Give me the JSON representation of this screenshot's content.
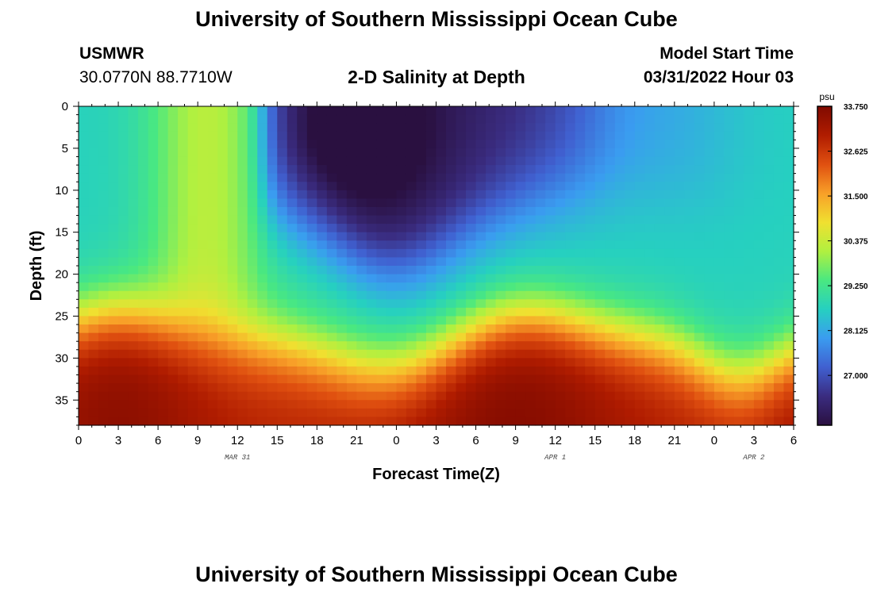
{
  "header": {
    "title": "University of Southern Mississippi Ocean Cube",
    "station": "USMWR",
    "coords": "30.0770N  88.7710W",
    "subtitle": "2-D Salinity at Depth",
    "model_label": "Model Start Time",
    "model_time": "03/31/2022 Hour 03"
  },
  "footer": {
    "title": "University of Southern Mississippi Ocean Cube"
  },
  "chart_data": {
    "type": "heatmap",
    "xlabel": "Forecast Time(Z)",
    "ylabel": "Depth (ft)",
    "x_ticks": [
      "0",
      "3",
      "6",
      "9",
      "12",
      "15",
      "18",
      "21",
      "0",
      "3",
      "6",
      "9",
      "12",
      "15",
      "18",
      "21",
      "0",
      "3",
      "6"
    ],
    "date_labels": [
      {
        "label": "MAR 31",
        "at_hour": 12
      },
      {
        "label": "APR 1",
        "at_hour": 36
      },
      {
        "label": "APR 2",
        "at_hour": 51
      }
    ],
    "x_range_hours": [
      0,
      54
    ],
    "y_ticks": [
      0,
      5,
      10,
      15,
      20,
      25,
      30,
      35
    ],
    "ylim": [
      0,
      38
    ],
    "y_inverted": true,
    "colorbar": {
      "unit": "psu",
      "min": 25.75,
      "max": 33.75,
      "ticks": [
        "33.750",
        "32.625",
        "31.500",
        "30.375",
        "29.250",
        "28.125",
        "27.000"
      ],
      "colors": [
        "#2a1040",
        "#3a2c80",
        "#4060d0",
        "#3a9cf0",
        "#26d0c0",
        "#4ae880",
        "#b0f040",
        "#f0e030",
        "#f8a028",
        "#e05010",
        "#b01c00",
        "#800a00"
      ]
    },
    "field_description_points": [
      {
        "hour": 0,
        "depth": 0,
        "psu": 28.7
      },
      {
        "hour": 9,
        "depth": 0,
        "psu": 30.0
      },
      {
        "hour": 14,
        "depth": 0,
        "psu": 27.2
      },
      {
        "hour": 21,
        "depth": 3,
        "psu": 25.8
      },
      {
        "hour": 30,
        "depth": 5,
        "psu": 26.3
      },
      {
        "hour": 51,
        "depth": 5,
        "psu": 28.3
      },
      {
        "hour": 24,
        "depth": 22,
        "psu": 28.0
      },
      {
        "hour": 3,
        "depth": 36,
        "psu": 33.0
      },
      {
        "hour": 33,
        "depth": 36,
        "psu": 33.2
      }
    ]
  }
}
